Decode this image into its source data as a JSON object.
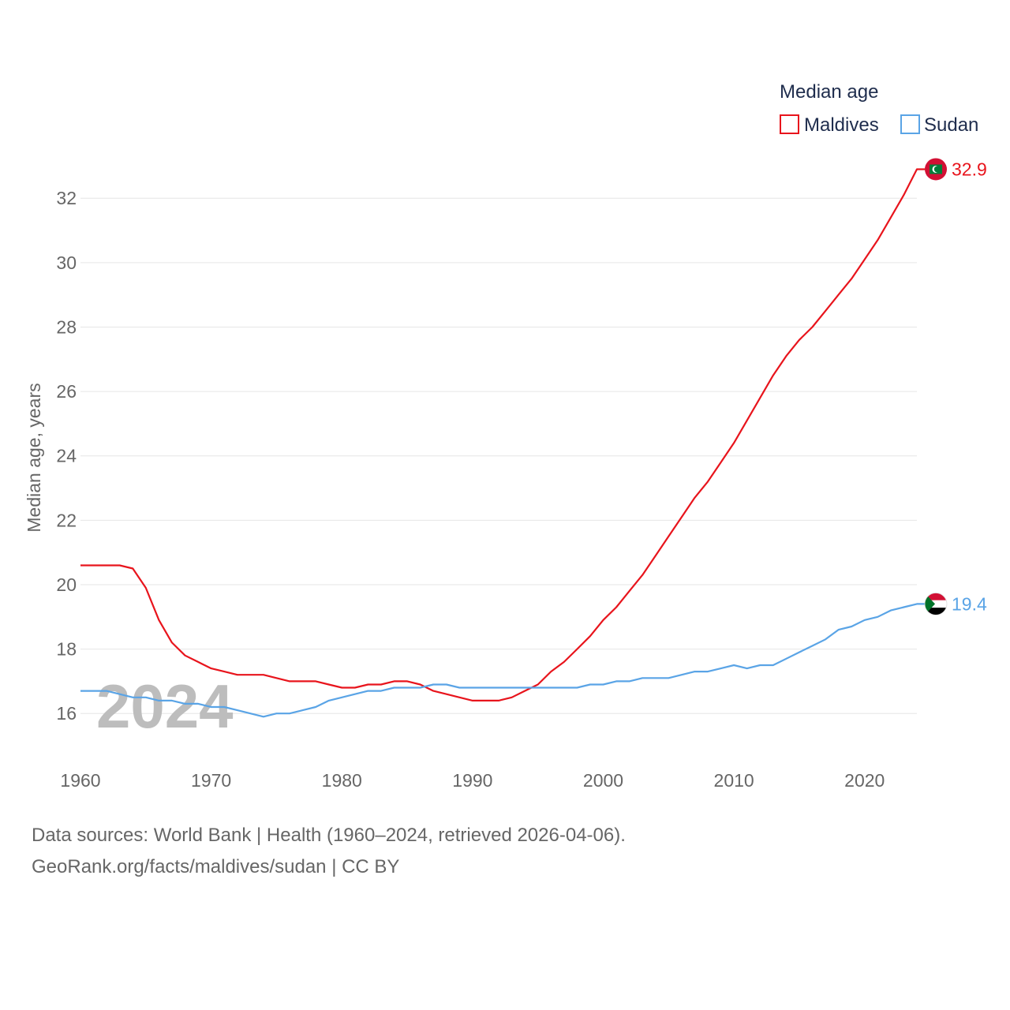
{
  "chart_data": {
    "type": "line",
    "title": "",
    "ylabel": "Median age, years",
    "xlabel": "",
    "xlim": [
      1960,
      2024
    ],
    "ylim": [
      15,
      33.5
    ],
    "xticks": [
      1960,
      1970,
      1980,
      1990,
      2000,
      2010,
      2020
    ],
    "yticks": [
      16,
      18,
      20,
      22,
      24,
      26,
      28,
      30,
      32
    ],
    "grid": true,
    "legend_title": "Median age",
    "legend_position": "top-right",
    "watermark_year": "2024",
    "x": [
      1960,
      1961,
      1962,
      1963,
      1964,
      1965,
      1966,
      1967,
      1968,
      1969,
      1970,
      1971,
      1972,
      1973,
      1974,
      1975,
      1976,
      1977,
      1978,
      1979,
      1980,
      1981,
      1982,
      1983,
      1984,
      1985,
      1986,
      1987,
      1988,
      1989,
      1990,
      1991,
      1992,
      1993,
      1994,
      1995,
      1996,
      1997,
      1998,
      1999,
      2000,
      2001,
      2002,
      2003,
      2004,
      2005,
      2006,
      2007,
      2008,
      2009,
      2010,
      2011,
      2012,
      2013,
      2014,
      2015,
      2016,
      2017,
      2018,
      2019,
      2020,
      2021,
      2022,
      2023,
      2024
    ],
    "series": [
      {
        "name": "Maldives",
        "color": "#e8141c",
        "end_label": "32.9",
        "flag": "maldives-flag",
        "values": [
          20.6,
          20.6,
          20.6,
          20.6,
          20.5,
          19.9,
          18.9,
          18.2,
          17.8,
          17.6,
          17.4,
          17.3,
          17.2,
          17.2,
          17.2,
          17.1,
          17.0,
          17.0,
          17.0,
          16.9,
          16.8,
          16.8,
          16.9,
          16.9,
          17.0,
          17.0,
          16.9,
          16.7,
          16.6,
          16.5,
          16.4,
          16.4,
          16.4,
          16.5,
          16.7,
          16.9,
          17.3,
          17.6,
          18.0,
          18.4,
          18.9,
          19.3,
          19.8,
          20.3,
          20.9,
          21.5,
          22.1,
          22.7,
          23.2,
          23.8,
          24.4,
          25.1,
          25.8,
          26.5,
          27.1,
          27.6,
          28.0,
          28.5,
          29.0,
          29.5,
          30.1,
          30.7,
          31.4,
          32.1,
          32.9
        ]
      },
      {
        "name": "Sudan",
        "color": "#5aa4e6",
        "end_label": "19.4",
        "flag": "sudan-flag",
        "values": [
          16.7,
          16.7,
          16.7,
          16.6,
          16.5,
          16.5,
          16.4,
          16.4,
          16.3,
          16.3,
          16.2,
          16.2,
          16.1,
          16.0,
          15.9,
          16.0,
          16.0,
          16.1,
          16.2,
          16.4,
          16.5,
          16.6,
          16.7,
          16.7,
          16.8,
          16.8,
          16.8,
          16.9,
          16.9,
          16.8,
          16.8,
          16.8,
          16.8,
          16.8,
          16.8,
          16.8,
          16.8,
          16.8,
          16.8,
          16.9,
          16.9,
          17.0,
          17.0,
          17.1,
          17.1,
          17.1,
          17.2,
          17.3,
          17.3,
          17.4,
          17.5,
          17.4,
          17.5,
          17.5,
          17.7,
          17.9,
          18.1,
          18.3,
          18.6,
          18.7,
          18.9,
          19.0,
          19.2,
          19.3,
          19.4
        ]
      }
    ]
  },
  "footer": {
    "line1": "Data sources: World Bank | Health (1960–2024, retrieved 2026-04-06).",
    "line2": "GeoRank.org/facts/maldives/sudan | CC BY"
  }
}
